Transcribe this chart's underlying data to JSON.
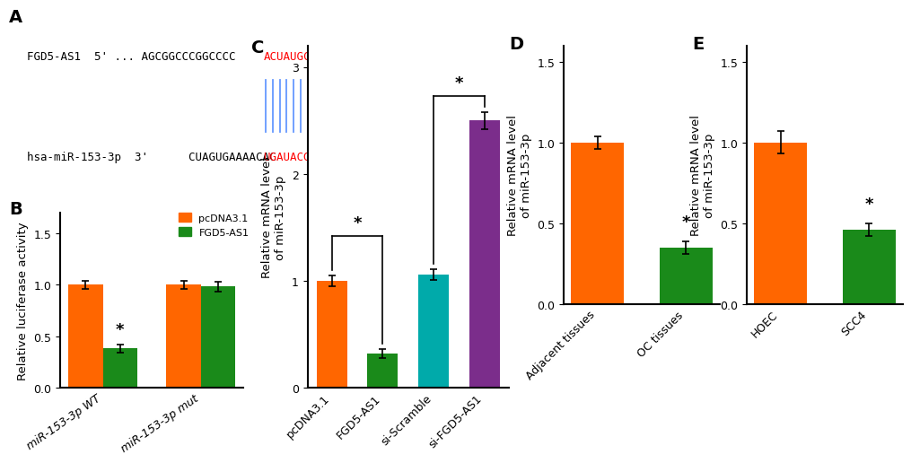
{
  "panel_A": {
    "fgd5_seq_black": "AGCGGCCCGGCCCC",
    "fgd5_seq_red": "ACUAUGCAA",
    "mir_seq_black": "CUAGUGAAAACAC",
    "mir_seq_red": "UGAUACGUU",
    "n_lines": 9,
    "line_color": "#6699FF"
  },
  "panel_B": {
    "categories": [
      "miR-153-3p WT",
      "miR-153-3p mut"
    ],
    "pcDNA3_1": [
      1.0,
      1.0
    ],
    "FGD5_AS1": [
      0.38,
      0.98
    ],
    "pcDNA3_1_err": [
      0.04,
      0.04
    ],
    "FGD5_AS1_err": [
      0.04,
      0.05
    ],
    "color_pcDNA": "#FF6600",
    "color_FGD5": "#1A8A1A",
    "ylabel": "Relative luciferase activity",
    "ylim": [
      0,
      1.7
    ],
    "yticks": [
      0.0,
      0.5,
      1.0,
      1.5
    ],
    "legend_labels": [
      "pcDNA3.1",
      "FGD5-AS1"
    ]
  },
  "panel_C": {
    "categories": [
      "pcDNA3.1",
      "FGD5-AS1",
      "si-Scramble",
      "si-FGD5-AS1"
    ],
    "values": [
      1.0,
      0.32,
      1.06,
      2.5
    ],
    "errors": [
      0.05,
      0.04,
      0.05,
      0.08
    ],
    "colors": [
      "#FF6600",
      "#1A8A1A",
      "#00AAAA",
      "#7B2D8B"
    ],
    "ylabel": "Relative mRNA level\nof miR-153-3p",
    "ylim": [
      0,
      3.2
    ],
    "yticks": [
      0,
      1,
      2,
      3
    ]
  },
  "panel_D": {
    "categories": [
      "Adjacent tissues",
      "OC tissues"
    ],
    "values": [
      1.0,
      0.35
    ],
    "errors": [
      0.04,
      0.04
    ],
    "colors": [
      "#FF6600",
      "#1A8A1A"
    ],
    "ylabel": "Relative mRNA level\nof miR-153-3p",
    "ylim": [
      0,
      1.6
    ],
    "yticks": [
      0.0,
      0.5,
      1.0,
      1.5
    ],
    "star_bar": 1
  },
  "panel_E": {
    "categories": [
      "HOEC",
      "SCC4"
    ],
    "values": [
      1.0,
      0.46
    ],
    "errors": [
      0.07,
      0.04
    ],
    "colors": [
      "#FF6600",
      "#1A8A1A"
    ],
    "ylabel": "Relative mRNA level\nof miR-153-3p",
    "ylim": [
      0,
      1.6
    ],
    "yticks": [
      0.0,
      0.5,
      1.0,
      1.5
    ],
    "star_bar": 1
  },
  "bg_color": "#FFFFFF",
  "panel_label_fontsize": 14,
  "tick_fontsize": 9,
  "axis_label_fontsize": 9.5
}
